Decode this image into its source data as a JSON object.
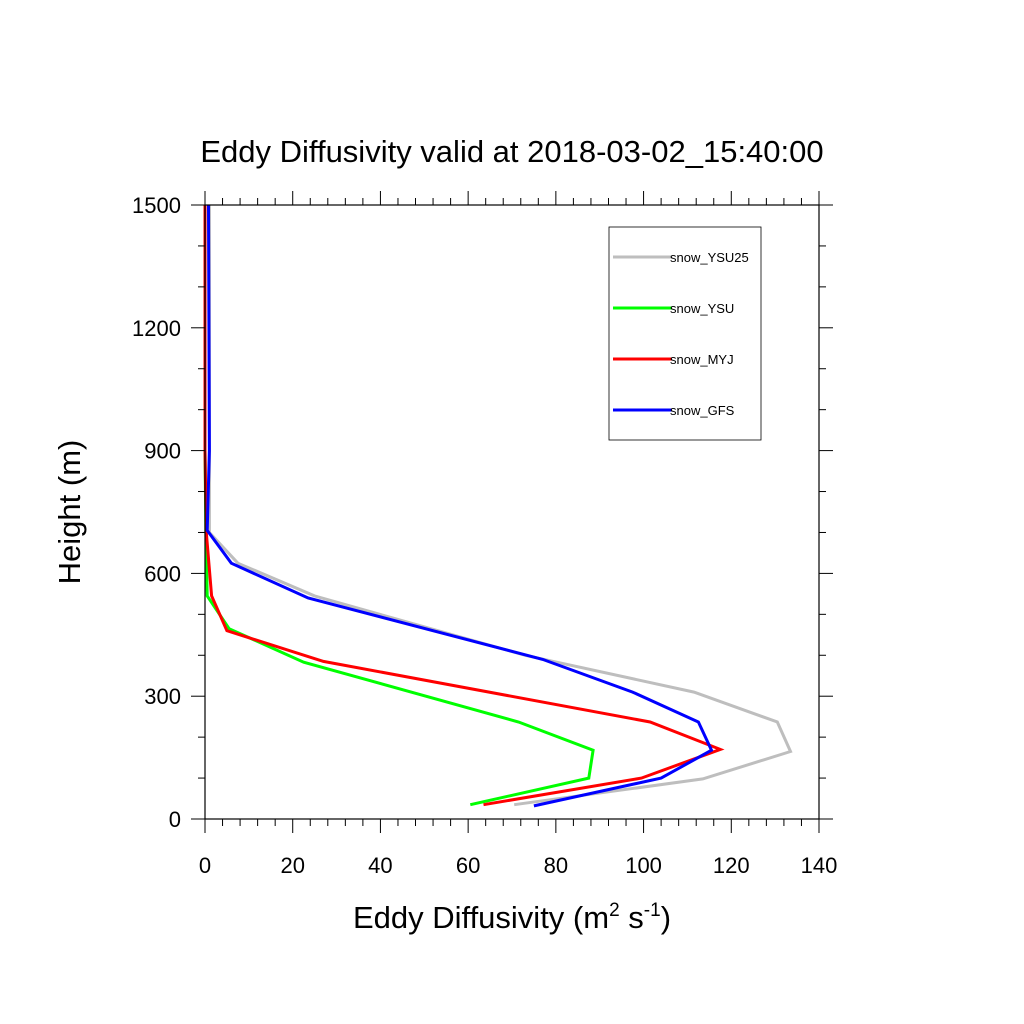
{
  "chart_data": {
    "type": "line",
    "title": "Eddy Diffusivity valid at 2018-03-02_15:40:00",
    "xlabel": {
      "main": "Eddy Diffusivity (m",
      "sup1": "2",
      "mid": " s",
      "sup2": "-1",
      "end": ")"
    },
    "ylabel": "Height (m)",
    "xlim": [
      0,
      140
    ],
    "ylim": [
      0,
      1500
    ],
    "xticks": [
      0,
      20,
      40,
      60,
      80,
      100,
      120,
      140
    ],
    "yticks": [
      0,
      300,
      600,
      900,
      1200,
      1500
    ],
    "legend_position": "top-right",
    "series": [
      {
        "name": "snow_YSU25",
        "color": "#bebebe",
        "points": [
          [
            70.5,
            35
          ],
          [
            113.5,
            98
          ],
          [
            133.5,
            165
          ],
          [
            130.5,
            237
          ],
          [
            111.5,
            310
          ],
          [
            73,
            400
          ],
          [
            25,
            545
          ],
          [
            7.5,
            625
          ],
          [
            1,
            700
          ],
          [
            1,
            900
          ],
          [
            1,
            1500
          ]
        ]
      },
      {
        "name": "snow_YSU",
        "color": "#00ff00",
        "points": [
          [
            60.5,
            35
          ],
          [
            87.5,
            100
          ],
          [
            88.5,
            168
          ],
          [
            71.5,
            237
          ],
          [
            22.5,
            383
          ],
          [
            5.5,
            465
          ],
          [
            0.5,
            545
          ],
          [
            0.2,
            700
          ],
          [
            0,
            900
          ],
          [
            0,
            1500
          ]
        ]
      },
      {
        "name": "snow_MYJ",
        "color": "#ff0000",
        "points": [
          [
            63.5,
            35
          ],
          [
            99.5,
            100
          ],
          [
            117.5,
            170
          ],
          [
            101.5,
            237
          ],
          [
            27,
            385
          ],
          [
            5,
            460
          ],
          [
            1.5,
            545
          ],
          [
            0.3,
            700
          ],
          [
            0,
            900
          ],
          [
            0,
            1500
          ]
        ]
      },
      {
        "name": "snow_GFS",
        "color": "#0000ff",
        "points": [
          [
            75,
            32
          ],
          [
            104,
            100
          ],
          [
            115.5,
            168
          ],
          [
            112.5,
            237
          ],
          [
            97.5,
            310
          ],
          [
            77,
            390
          ],
          [
            23.5,
            540
          ],
          [
            6,
            625
          ],
          [
            0.5,
            705
          ],
          [
            1,
            900
          ],
          [
            0.8,
            1500
          ]
        ]
      }
    ]
  }
}
